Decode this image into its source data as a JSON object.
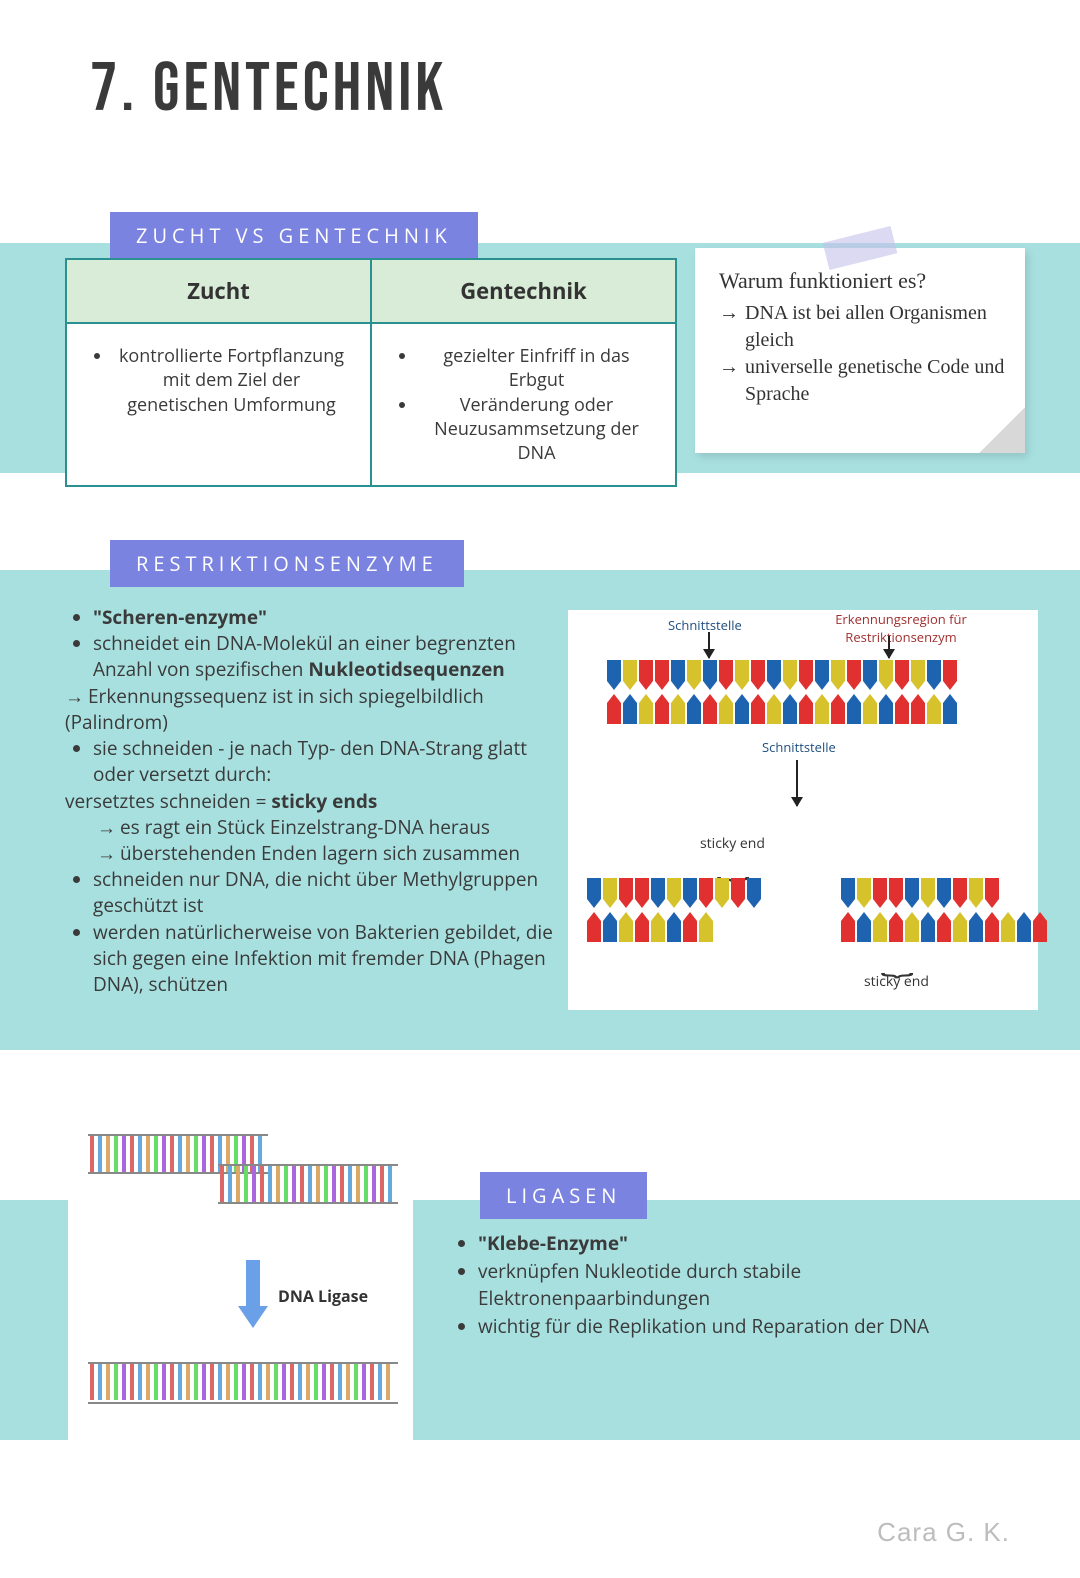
{
  "title": "7. Gentechnik",
  "colors": {
    "band": "#a8e0e0",
    "label_bg": "#7b83e0",
    "label_fg": "#ffffff",
    "table_border": "#2a9090",
    "table_head_bg": "#d8ecd8",
    "note_bg": "#ffffff",
    "tape": "#c5c0ea",
    "author": "#bdbdbd",
    "dna_palette": [
      "#1e63b0",
      "#e03030",
      "#d6c22a",
      "#ffffff"
    ]
  },
  "fonts": {
    "title_size_pt": 51,
    "label_size_pt": 15,
    "body_size_pt": 14,
    "note_size_pt": 15
  },
  "section1": {
    "label": "ZUCHT VS GENTECHNIK",
    "col1_head": "Zucht",
    "col2_head": "Gentechnik",
    "col1_item": "kontrollierte Fortpflanzung mit dem Ziel der genetischen Umformung",
    "col2_item1": "gezielter Einfriff in das Erbgut",
    "col2_item2": "Veränderung oder Neuzusammsetzung der DNA",
    "note_title": "Warum funktioniert es?",
    "note_line1": "DNA ist bei allen Organismen gleich",
    "note_line2": "universelle genetische Code und Sprache"
  },
  "section2": {
    "label": "RESTRIKTIONSENZYME",
    "b1": "\"Scheren-enzyme\"",
    "b2a": "schneidet ein DNA-Molekül an einer begrenzten Anzahl von spezifischen ",
    "b2b": "Nukleotidsequenzen",
    "b3": "Erkennungssequenz ist in sich spiegelbildlich (Palindrom)",
    "b4": "sie schneiden - je nach Typ-  den DNA-Strang glatt oder versetzt durch:",
    "b5a": "versetztes schneiden = ",
    "b5b": "sticky ends",
    "b6": "es ragt ein Stück Einzelstrang-DNA heraus",
    "b7": "überstehenden Enden lagern sich zusammen",
    "b8": "schneiden nur DNA, die nicht über Methylgruppen geschützt ist",
    "b9": "werden natürlicherweise von Bakterien gebildet, die sich gegen eine Infektion mit fremder DNA (Phagen DNA), schützen",
    "diagram": {
      "lbl_schnitt": "Schnittstelle",
      "lbl_erk": "Erkennungsregion für Restriktionsenzym",
      "lbl_sticky": "sticky end",
      "top_width_bases": 22,
      "bottom_left_bases": 8,
      "bottom_right_bases": 10,
      "base_colors": [
        "#1e63b0",
        "#d6c22a",
        "#e03030",
        "#e03030",
        "#1e63b0",
        "#d6c22a",
        "#1e63b0",
        "#e03030",
        "#d6c22a",
        "#e03030",
        "#1e63b0",
        "#d6c22a",
        "#e03030",
        "#1e63b0",
        "#d6c22a",
        "#e03030",
        "#1e63b0",
        "#d6c22a",
        "#e03030",
        "#d6c22a",
        "#1e63b0",
        "#e03030"
      ]
    }
  },
  "section3": {
    "label": "LIGASEN",
    "b1": "\"Klebe-Enzyme\"",
    "b2": "verknüpfen Nukleotide durch stabile Elektronenpaarbindungen",
    "b3": "wichtig für die Replikation und Reparation der DNA",
    "diagram": {
      "label_ligase": "DNA Ligase",
      "strand_colors": [
        "#d66",
        "#6ad",
        "#da6",
        "#6d6",
        "#a6d",
        "#d66",
        "#6ad",
        "#da6",
        "#6d6",
        "#a6d",
        "#d66",
        "#6ad",
        "#da6",
        "#6d6",
        "#a6d",
        "#d66",
        "#6ad",
        "#da6",
        "#6d6",
        "#a6d",
        "#d66",
        "#6ad",
        "#da6",
        "#6d6",
        "#a6d",
        "#d66",
        "#6ad",
        "#da6",
        "#6d6",
        "#a6d"
      ]
    }
  },
  "author": "Cara G. K."
}
